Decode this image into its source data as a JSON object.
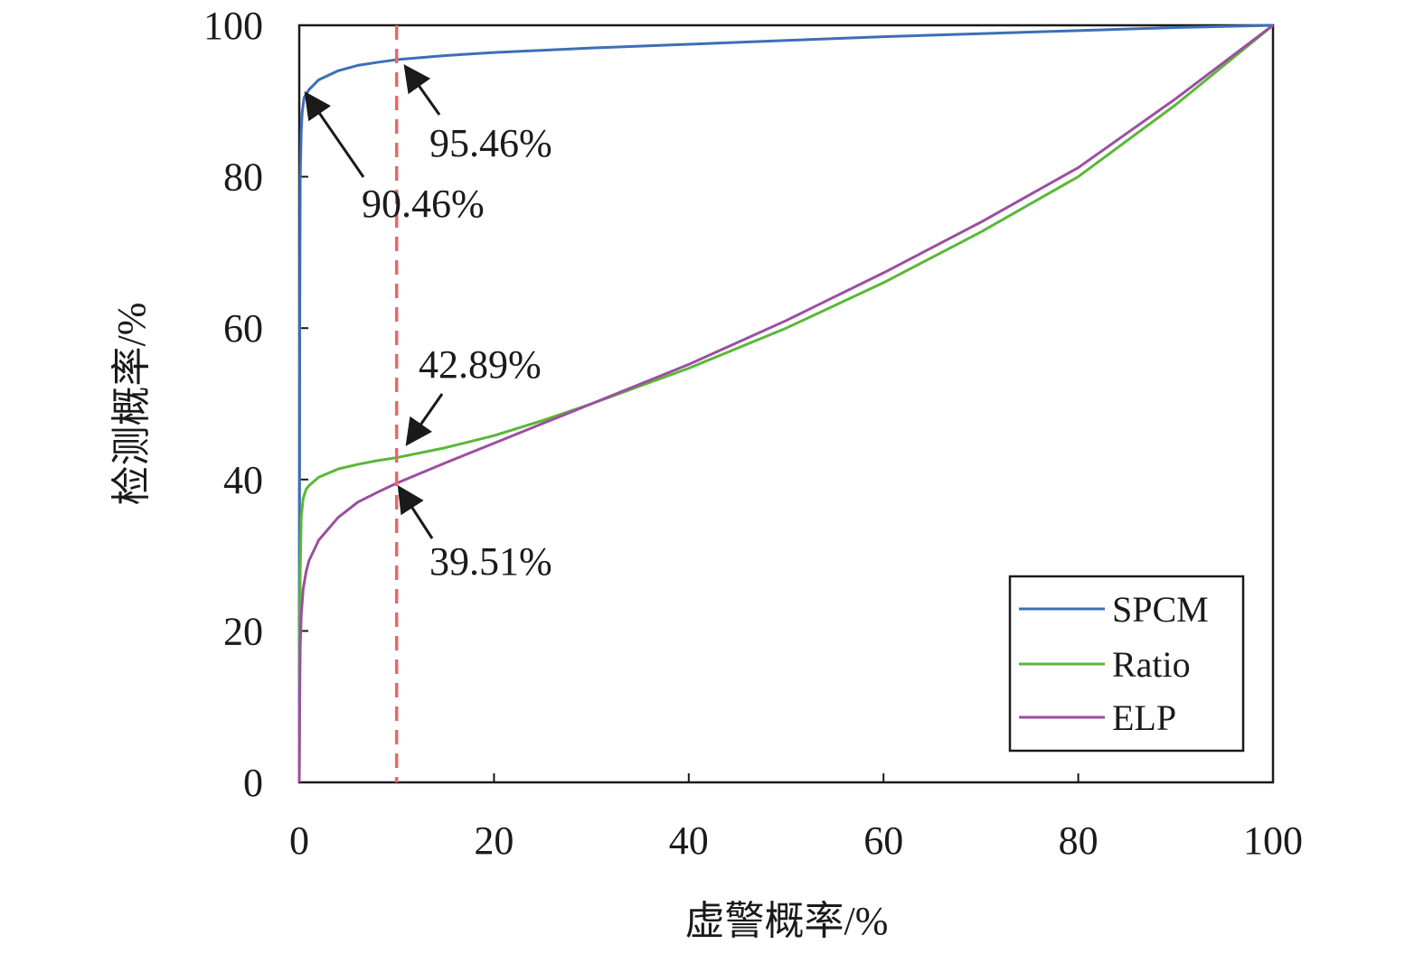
{
  "chart_data": {
    "type": "line",
    "title": "",
    "xlabel": "虚警概率/%",
    "ylabel": "检测概率/%",
    "xlim": [
      0,
      100
    ],
    "ylim": [
      0,
      100
    ],
    "xticks": [
      "0",
      "20",
      "40",
      "60",
      "80",
      "100"
    ],
    "yticks": [
      "0",
      "20",
      "40",
      "60",
      "80",
      "100"
    ],
    "grid": false,
    "legend_position": "bottom-right",
    "series": [
      {
        "name": "SPCM",
        "color": "#3c6fb6",
        "points": [
          [
            0,
            0
          ],
          [
            0.05,
            60
          ],
          [
            0.1,
            80
          ],
          [
            0.2,
            86
          ],
          [
            0.3,
            88.5
          ],
          [
            0.5,
            90.46
          ],
          [
            1,
            91.5
          ],
          [
            2,
            92.8
          ],
          [
            4,
            94.0
          ],
          [
            6,
            94.7
          ],
          [
            8,
            95.1
          ],
          [
            10,
            95.46
          ],
          [
            15,
            96.0
          ],
          [
            20,
            96.4
          ],
          [
            30,
            97.0
          ],
          [
            40,
            97.5
          ],
          [
            50,
            98.0
          ],
          [
            60,
            98.5
          ],
          [
            70,
            98.9
          ],
          [
            80,
            99.3
          ],
          [
            90,
            99.7
          ],
          [
            100,
            100
          ]
        ]
      },
      {
        "name": "Ratio",
        "color": "#5ab738",
        "points": [
          [
            0,
            0
          ],
          [
            0.05,
            18
          ],
          [
            0.1,
            28
          ],
          [
            0.2,
            35
          ],
          [
            0.4,
            37.5
          ],
          [
            0.7,
            38.7
          ],
          [
            1,
            39.2
          ],
          [
            2,
            40.3
          ],
          [
            4,
            41.4
          ],
          [
            6,
            42.0
          ],
          [
            8,
            42.5
          ],
          [
            10,
            42.89
          ],
          [
            15,
            44.2
          ],
          [
            20,
            45.8
          ],
          [
            25,
            47.8
          ],
          [
            30,
            50.0
          ],
          [
            40,
            54.7
          ],
          [
            50,
            60.0
          ],
          [
            60,
            66.0
          ],
          [
            70,
            72.7
          ],
          [
            80,
            80.0
          ],
          [
            90,
            89.5
          ],
          [
            100,
            100
          ]
        ]
      },
      {
        "name": "ELP",
        "color": "#9b4f9f",
        "points": [
          [
            0,
            0
          ],
          [
            0.05,
            12
          ],
          [
            0.1,
            18
          ],
          [
            0.2,
            22
          ],
          [
            0.4,
            25.5
          ],
          [
            0.7,
            27.8
          ],
          [
            1,
            29.3
          ],
          [
            2,
            32.0
          ],
          [
            4,
            35.0
          ],
          [
            6,
            37.0
          ],
          [
            8,
            38.3
          ],
          [
            10,
            39.51
          ],
          [
            15,
            42.2
          ],
          [
            20,
            44.8
          ],
          [
            25,
            47.4
          ],
          [
            30,
            50.0
          ],
          [
            40,
            55.2
          ],
          [
            50,
            61.0
          ],
          [
            60,
            67.3
          ],
          [
            70,
            74.0
          ],
          [
            80,
            81.2
          ],
          [
            90,
            90.3
          ],
          [
            100,
            100
          ]
        ]
      }
    ],
    "reference_line": {
      "x": 10,
      "color": "#e8686a",
      "style": "dashed"
    },
    "annotations": [
      {
        "text": "95.46%",
        "x": 10,
        "y": 95.46
      },
      {
        "text": "90.46%",
        "x": 0.5,
        "y": 90.46
      },
      {
        "text": "42.89%",
        "x": 10,
        "y": 42.89
      },
      {
        "text": "39.51%",
        "x": 10,
        "y": 39.51
      }
    ]
  }
}
